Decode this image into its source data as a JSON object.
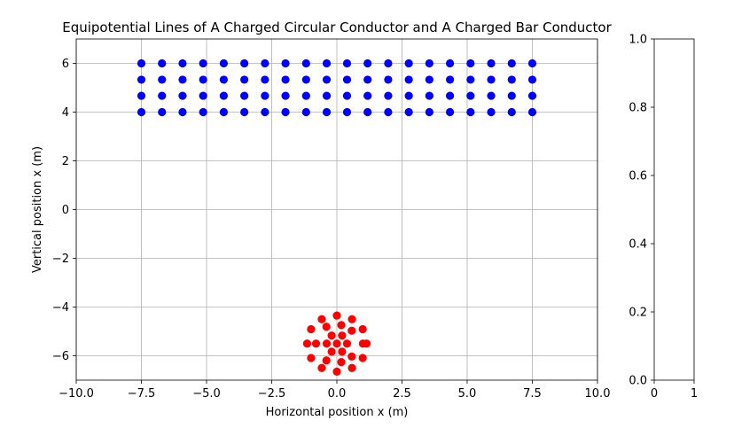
{
  "chart_data": [
    {
      "type": "scatter",
      "title": "Equipotential Lines of A Charged Circular Conductor and A Charged Bar Conductor",
      "xlabel": "Horizontal position x (m)",
      "ylabel": "Vertical position x (m)",
      "xlim": [
        -10,
        10
      ],
      "ylim": [
        -7,
        7
      ],
      "grid": true,
      "xticks": [
        "−10.0",
        "−7.5",
        "−5.0",
        "−2.5",
        "0.0",
        "2.5",
        "5.0",
        "7.5",
        "10.0"
      ],
      "xtick_values": [
        -10,
        -7.5,
        -5,
        -2.5,
        0,
        2.5,
        5,
        7.5,
        10
      ],
      "yticks": [
        "−6",
        "−4",
        "−2",
        "0",
        "2",
        "4",
        "6"
      ],
      "ytick_values": [
        -6,
        -4,
        -2,
        0,
        2,
        4,
        6
      ],
      "series": [
        {
          "color": "#0000ff",
          "points": [
            [
              -7.5,
              6
            ],
            [
              -6.71,
              6
            ],
            [
              -5.92,
              6
            ],
            [
              -5.13,
              6
            ],
            [
              -4.34,
              6
            ],
            [
              -3.55,
              6
            ],
            [
              -2.76,
              6
            ],
            [
              -1.97,
              6
            ],
            [
              -1.18,
              6
            ],
            [
              -0.39,
              6
            ],
            [
              0.39,
              6
            ],
            [
              1.18,
              6
            ],
            [
              1.97,
              6
            ],
            [
              2.76,
              6
            ],
            [
              3.55,
              6
            ],
            [
              4.34,
              6
            ],
            [
              5.13,
              6
            ],
            [
              5.92,
              6
            ],
            [
              6.71,
              6
            ],
            [
              7.5,
              6
            ],
            [
              -7.5,
              5.33
            ],
            [
              -6.71,
              5.33
            ],
            [
              -5.92,
              5.33
            ],
            [
              -5.13,
              5.33
            ],
            [
              -4.34,
              5.33
            ],
            [
              -3.55,
              5.33
            ],
            [
              -2.76,
              5.33
            ],
            [
              -1.97,
              5.33
            ],
            [
              -1.18,
              5.33
            ],
            [
              -0.39,
              5.33
            ],
            [
              0.39,
              5.33
            ],
            [
              1.18,
              5.33
            ],
            [
              1.97,
              5.33
            ],
            [
              2.76,
              5.33
            ],
            [
              3.55,
              5.33
            ],
            [
              4.34,
              5.33
            ],
            [
              5.13,
              5.33
            ],
            [
              5.92,
              5.33
            ],
            [
              6.71,
              5.33
            ],
            [
              7.5,
              5.33
            ],
            [
              -7.5,
              4.67
            ],
            [
              -6.71,
              4.67
            ],
            [
              -5.92,
              4.67
            ],
            [
              -5.13,
              4.67
            ],
            [
              -4.34,
              4.67
            ],
            [
              -3.55,
              4.67
            ],
            [
              -2.76,
              4.67
            ],
            [
              -1.97,
              4.67
            ],
            [
              -1.18,
              4.67
            ],
            [
              -0.39,
              4.67
            ],
            [
              0.39,
              4.67
            ],
            [
              1.18,
              4.67
            ],
            [
              1.97,
              4.67
            ],
            [
              2.76,
              4.67
            ],
            [
              3.55,
              4.67
            ],
            [
              4.34,
              4.67
            ],
            [
              5.13,
              4.67
            ],
            [
              5.92,
              4.67
            ],
            [
              6.71,
              4.67
            ],
            [
              7.5,
              4.67
            ],
            [
              -7.5,
              4
            ],
            [
              -6.71,
              4
            ],
            [
              -5.92,
              4
            ],
            [
              -5.13,
              4
            ],
            [
              -4.34,
              4
            ],
            [
              -3.55,
              4
            ],
            [
              -2.76,
              4
            ],
            [
              -1.97,
              4
            ],
            [
              -1.18,
              4
            ],
            [
              -0.39,
              4
            ],
            [
              0.39,
              4
            ],
            [
              1.18,
              4
            ],
            [
              1.97,
              4
            ],
            [
              2.76,
              4
            ],
            [
              3.55,
              4
            ],
            [
              4.34,
              4
            ],
            [
              5.13,
              4
            ],
            [
              5.92,
              4
            ],
            [
              6.71,
              4
            ],
            [
              7.5,
              4
            ]
          ]
        },
        {
          "color": "#ff0000",
          "points": [
            [
              0,
              -4.35
            ],
            [
              -0.58,
              -4.5
            ],
            [
              0.58,
              -4.5
            ],
            [
              -0.99,
              -4.91
            ],
            [
              0.99,
              -4.91
            ],
            [
              -1.14,
              -5.5
            ],
            [
              1.14,
              -5.5
            ],
            [
              -0.99,
              -6.09
            ],
            [
              0.99,
              -6.09
            ],
            [
              -0.58,
              -6.5
            ],
            [
              0.58,
              -6.5
            ],
            [
              0,
              -6.65
            ],
            [
              0.17,
              -4.74
            ],
            [
              0.57,
              -4.97
            ],
            [
              0.57,
              -6.03
            ],
            [
              0.17,
              -6.26
            ],
            [
              -0.4,
              -4.81
            ],
            [
              -0.4,
              -6.19
            ],
            [
              -0.8,
              -5.5
            ],
            [
              1,
              -5.5
            ],
            [
              0.2,
              -5.17
            ],
            [
              0.39,
              -5.5
            ],
            [
              0.2,
              -5.83
            ],
            [
              -0.2,
              -5.83
            ],
            [
              -0.39,
              -5.5
            ],
            [
              -0.2,
              -5.17
            ],
            [
              0,
              -5.5
            ]
          ]
        }
      ]
    },
    {
      "type": "colorbar",
      "ylim": [
        0,
        1
      ],
      "xlim": [
        0,
        1
      ],
      "yticks": [
        "0.0",
        "0.2",
        "0.4",
        "0.6",
        "0.8",
        "1.0"
      ],
      "ytick_values": [
        0,
        0.2,
        0.4,
        0.6,
        0.8,
        1.0
      ],
      "xticks": [
        "0",
        "1"
      ],
      "xtick_values": [
        0,
        1
      ]
    }
  ]
}
